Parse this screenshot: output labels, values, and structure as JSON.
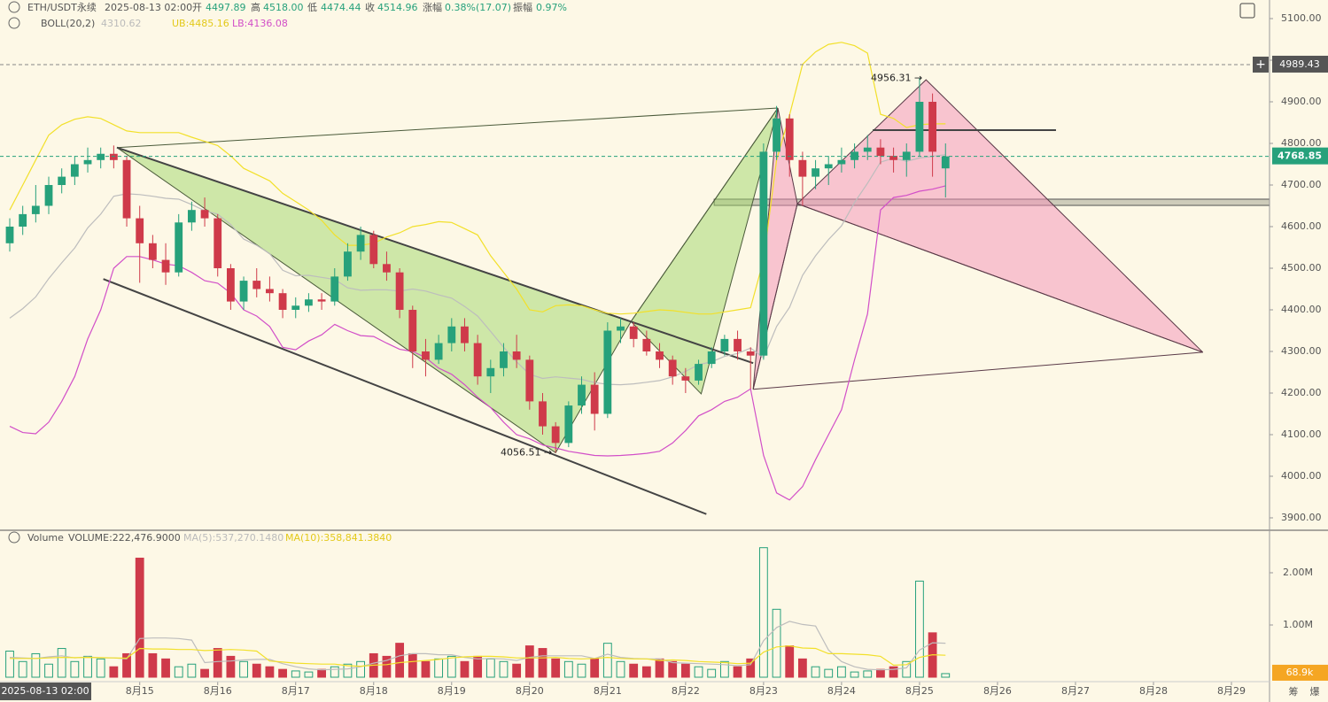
{
  "header": {
    "symbol": "ETH/USDT永续",
    "time": "2025-08-13 02:00",
    "open_label": "开",
    "open": "4497.89",
    "high_label": "高",
    "high": "4518.00",
    "low_label": "低",
    "low": "4474.44",
    "close_label": "收",
    "close": "4514.96",
    "change_label": "涨幅",
    "change": "0.38%(17.07)",
    "amplitude_label": "振幅",
    "amplitude": "0.97%",
    "boll_title": "BOLL(20,2)",
    "boll_mid": "4310.62",
    "boll_ub": "UB:4485.16",
    "boll_lb": "LB:4136.08",
    "volume_title": "Volume",
    "volume_value": "VOLUME:222,476.9000",
    "volume_ma5": "MA(5):537,270.1480",
    "volume_ma10": "MA(10):358,841.3840",
    "side_a": "筹",
    "side_b": "爆"
  },
  "chart_data": {
    "type": "candlestick",
    "up_color": "#26a17b",
    "down_color": "#cf3a4a",
    "open": [
      4560,
      4600,
      4630,
      4650,
      4700,
      4720,
      4750,
      4760,
      4775,
      4760,
      4620,
      4560,
      4520,
      4490,
      4610,
      4640,
      4620,
      4500,
      4420,
      4470,
      4450,
      4440,
      4400,
      4410,
      4425,
      4420,
      4480,
      4540,
      4580,
      4510,
      4490,
      4400,
      4300,
      4280,
      4320,
      4360,
      4320,
      4240,
      4260,
      4300,
      4280,
      4180,
      4120,
      4080,
      4170,
      4220,
      4150,
      4350,
      4360,
      4330,
      4300,
      4280,
      4240,
      4230,
      4270,
      4300,
      4330,
      4300,
      4290,
      4780,
      4860,
      4760,
      4720,
      4740,
      4750,
      4760,
      4780,
      4790,
      4770,
      4760,
      4780,
      4900,
      4740
    ],
    "high": [
      4620,
      4650,
      4700,
      4720,
      4740,
      4770,
      4790,
      4790,
      4795,
      4770,
      4650,
      4580,
      4560,
      4630,
      4660,
      4670,
      4630,
      4510,
      4480,
      4500,
      4480,
      4450,
      4430,
      4440,
      4440,
      4500,
      4560,
      4600,
      4590,
      4540,
      4500,
      4410,
      4330,
      4340,
      4380,
      4380,
      4340,
      4280,
      4320,
      4340,
      4290,
      4200,
      4130,
      4180,
      4240,
      4250,
      4370,
      4380,
      4370,
      4350,
      4320,
      4290,
      4260,
      4280,
      4310,
      4340,
      4350,
      4310,
      4800,
      4890,
      4870,
      4780,
      4760,
      4770,
      4790,
      4800,
      4820,
      4810,
      4790,
      4800,
      4956.31,
      4920,
      4800
    ],
    "low": [
      4540,
      4580,
      4610,
      4630,
      4680,
      4700,
      4730,
      4740,
      4740,
      4600,
      4465,
      4500,
      4460,
      4480,
      4590,
      4600,
      4480,
      4400,
      4400,
      4430,
      4420,
      4380,
      4380,
      4395,
      4400,
      4410,
      4470,
      4520,
      4500,
      4470,
      4380,
      4260,
      4240,
      4270,
      4300,
      4300,
      4220,
      4200,
      4240,
      4260,
      4160,
      4100,
      4056.51,
      4070,
      4150,
      4110,
      4140,
      4320,
      4310,
      4290,
      4260,
      4220,
      4200,
      4220,
      4260,
      4290,
      4280,
      4210,
      4280,
      4760,
      4720,
      4650,
      4690,
      4700,
      4730,
      4740,
      4760,
      4750,
      4730,
      4720,
      4770,
      4720,
      4670
    ],
    "close": [
      4600,
      4630,
      4650,
      4700,
      4720,
      4750,
      4760,
      4775,
      4760,
      4620,
      4560,
      4520,
      4490,
      4610,
      4640,
      4620,
      4500,
      4420,
      4470,
      4450,
      4440,
      4400,
      4410,
      4425,
      4420,
      4480,
      4540,
      4580,
      4510,
      4490,
      4400,
      4300,
      4280,
      4320,
      4360,
      4320,
      4240,
      4260,
      4300,
      4280,
      4180,
      4120,
      4080,
      4170,
      4220,
      4150,
      4350,
      4360,
      4330,
      4300,
      4280,
      4240,
      4230,
      4270,
      4300,
      4330,
      4300,
      4290,
      4780,
      4860,
      4760,
      4720,
      4740,
      4750,
      4760,
      4780,
      4790,
      4770,
      4760,
      4780,
      4900,
      4780,
      4768.85
    ],
    "ylim": [
      3872.3,
      5144.7
    ],
    "yticks": [
      {
        "value": 3900,
        "label": "3900.00"
      },
      {
        "value": 4000,
        "label": "4000.00"
      },
      {
        "value": 4100,
        "label": "4100.00"
      },
      {
        "value": 4200,
        "label": "4200.00"
      },
      {
        "value": 4300,
        "label": "4300.00"
      },
      {
        "value": 4400,
        "label": "4400.00"
      },
      {
        "value": 4500,
        "label": "4500.00"
      },
      {
        "value": 4600,
        "label": "4600.00"
      },
      {
        "value": 4700,
        "label": "4700.00"
      },
      {
        "value": 4800,
        "label": "4800.00"
      },
      {
        "value": 4900,
        "label": "4900.00"
      },
      {
        "value": 5000,
        "label": "5000.00"
      },
      {
        "value": 5100,
        "label": "5100.00"
      }
    ],
    "xlim": [
      -0.75,
      96.93
    ],
    "xticks": [
      {
        "value": 10,
        "label": "8月15"
      },
      {
        "value": 16,
        "label": "8月16"
      },
      {
        "value": 22,
        "label": "8月17"
      },
      {
        "value": 28,
        "label": "8月18"
      },
      {
        "value": 34,
        "label": "8月19"
      },
      {
        "value": 40,
        "label": "8月20"
      },
      {
        "value": 46,
        "label": "8月21"
      },
      {
        "value": 52,
        "label": "8月22"
      },
      {
        "value": 58,
        "label": "8月23"
      },
      {
        "value": 64,
        "label": "8月24"
      },
      {
        "value": 70,
        "label": "8月25"
      },
      {
        "value": 76,
        "label": "8月26"
      },
      {
        "value": 82,
        "label": "8月27"
      },
      {
        "value": 88,
        "label": "8月28"
      },
      {
        "value": 94,
        "label": "8月29"
      }
    ],
    "boll": {
      "upper_color": "#f2e02a",
      "mid_color": "#bdbdbd",
      "lower_color": "#d24fc8",
      "upper": [
        4640,
        4700,
        4760,
        4820,
        4845,
        4858,
        4864,
        4860,
        4845,
        4830,
        4826,
        4826,
        4826,
        4826,
        4815,
        4805,
        4795,
        4770,
        4740,
        4725,
        4710,
        4680,
        4660,
        4640,
        4615,
        4580,
        4555,
        4555,
        4560,
        4575,
        4585,
        4600,
        4605,
        4612,
        4610,
        4595,
        4580,
        4530,
        4490,
        4450,
        4400,
        4395,
        4410,
        4412,
        4410,
        4400,
        4392,
        4390,
        4392,
        4396,
        4400,
        4398,
        4394,
        4390,
        4390,
        4395,
        4400,
        4405,
        4520,
        4760,
        4868,
        4990,
        5020,
        5038,
        5043,
        5035,
        5017,
        4870,
        4860,
        4838,
        4845,
        4847,
        4847
      ],
      "mid": [
        4380,
        4403,
        4431,
        4475,
        4513,
        4549,
        4597,
        4630,
        4673,
        4679,
        4677,
        4673,
        4668,
        4666,
        4653,
        4638,
        4630,
        4605,
        4570,
        4555,
        4535,
        4495,
        4482,
        4483,
        4478,
        4473,
        4453,
        4447,
        4448,
        4448,
        4445,
        4450,
        4445,
        4436,
        4428,
        4408,
        4385,
        4348,
        4310,
        4275,
        4245,
        4235,
        4239,
        4236,
        4233,
        4225,
        4221,
        4220,
        4222,
        4226,
        4230,
        4239,
        4252,
        4268,
        4275,
        4288,
        4295,
        4308,
        4285,
        4360,
        4406,
        4483,
        4530,
        4569,
        4602,
        4658,
        4704,
        4755,
        4765,
        4757,
        4765,
        4769,
        4773
      ],
      "lower": [
        4120,
        4105,
        4102,
        4130,
        4180,
        4240,
        4330,
        4400,
        4500,
        4528,
        4528,
        4520,
        4510,
        4506,
        4490,
        4470,
        4464,
        4440,
        4400,
        4385,
        4360,
        4310,
        4304,
        4325,
        4340,
        4365,
        4350,
        4338,
        4336,
        4320,
        4305,
        4300,
        4285,
        4260,
        4245,
        4220,
        4190,
        4165,
        4130,
        4100,
        4090,
        4075,
        4068,
        4060,
        4055,
        4050,
        4049,
        4050,
        4052,
        4055,
        4060,
        4080,
        4110,
        4145,
        4160,
        4180,
        4190,
        4210,
        4050,
        3960,
        3943,
        3975,
        4040,
        4100,
        4160,
        4280,
        4390,
        4640,
        4670,
        4675,
        4685,
        4690,
        4698
      ]
    },
    "volume": {
      "ylim": [
        0,
        2796610
      ],
      "yticks": [
        {
          "value": 1000000,
          "label": "1.00M"
        },
        {
          "value": 2000000,
          "label": "2.00M"
        }
      ],
      "values": [
        500000,
        300000,
        450000,
        250000,
        550000,
        300000,
        400000,
        350000,
        200000,
        450000,
        2280000,
        450000,
        350000,
        200000,
        250000,
        150000,
        550000,
        400000,
        300000,
        250000,
        200000,
        150000,
        120000,
        100000,
        150000,
        200000,
        250000,
        300000,
        450000,
        400000,
        650000,
        450000,
        300000,
        350000,
        400000,
        300000,
        400000,
        350000,
        300000,
        250000,
        600000,
        550000,
        350000,
        300000,
        250000,
        350000,
        650000,
        300000,
        250000,
        200000,
        350000,
        300000,
        250000,
        200000,
        150000,
        300000,
        200000,
        350000,
        2480000,
        1300000,
        600000,
        350000,
        200000,
        150000,
        200000,
        100000,
        120000,
        150000,
        200000,
        300000,
        1840000,
        850000,
        68900
      ],
      "ma5_color": "#bdbdbd",
      "ma10_color": "#f2e02a",
      "ma5": [
        380000,
        370000,
        360000,
        390000,
        410000,
        370000,
        390000,
        370000,
        370000,
        350000,
        740000,
        750000,
        750000,
        740000,
        710000,
        280000,
        300000,
        310000,
        330000,
        340000,
        340000,
        260000,
        200000,
        160000,
        140000,
        150000,
        160000,
        200000,
        270000,
        320000,
        410000,
        450000,
        450000,
        430000,
        430000,
        380000,
        350000,
        360000,
        350000,
        320000,
        380000,
        410000,
        410000,
        410000,
        410000,
        360000,
        440000,
        380000,
        360000,
        350000,
        350000,
        280000,
        270000,
        260000,
        250000,
        240000,
        220000,
        240000,
        700000,
        950000,
        1070000,
        1010000,
        980000,
        520000,
        300000,
        200000,
        150000,
        140000,
        150000,
        180000,
        520000,
        660000,
        650000
      ],
      "ma10": [
        360000,
        360000,
        360000,
        370000,
        380000,
        375000,
        380000,
        375000,
        370000,
        365000,
        550000,
        540000,
        540000,
        530000,
        530000,
        510000,
        520000,
        530000,
        520000,
        500000,
        310000,
        290000,
        270000,
        260000,
        250000,
        250000,
        220000,
        210000,
        230000,
        240000,
        280000,
        300000,
        320000,
        340000,
        370000,
        390000,
        400000,
        400000,
        390000,
        370000,
        370000,
        370000,
        380000,
        360000,
        350000,
        360000,
        380000,
        360000,
        350000,
        350000,
        320000,
        330000,
        320000,
        300000,
        290000,
        280000,
        260000,
        270000,
        480000,
        580000,
        600000,
        560000,
        550000,
        450000,
        450000,
        440000,
        430000,
        400000,
        230000,
        240000,
        380000,
        430000,
        420000
      ]
    },
    "last_price": 4768.85,
    "crosshair_price": 4989.43,
    "volume_tag": {
      "value": 68900,
      "label": "68.9k"
    },
    "patterns": [
      {
        "color": "#9fd66a",
        "edge": "#4a5a3a",
        "points": [
          {
            "x": 8.25,
            "y": 4790
          },
          {
            "x": 42,
            "y": 4056.51
          },
          {
            "x": 47.8,
            "y": 4372
          },
          {
            "x": 53.2,
            "y": 4198
          },
          {
            "x": 59.1,
            "y": 4885
          }
        ]
      },
      {
        "color": "#f38fb8",
        "edge": "#5a3a48",
        "points": [
          {
            "x": 57.2,
            "y": 4209
          },
          {
            "x": 59.1,
            "y": 4885
          },
          {
            "x": 60.6,
            "y": 4655
          },
          {
            "x": 70.5,
            "y": 4953
          },
          {
            "x": 91.8,
            "y": 4298
          }
        ]
      }
    ],
    "trendlines": [
      {
        "color": "#444",
        "points": [
          {
            "x": 8.25,
            "y": 4790
          },
          {
            "x": 57.2,
            "y": 4272
          }
        ]
      },
      {
        "color": "#444",
        "points": [
          {
            "x": 7.2,
            "y": 4474
          },
          {
            "x": 53.6,
            "y": 3909
          }
        ]
      },
      {
        "color": "#444",
        "points": [
          {
            "x": 66.4,
            "y": 4832
          },
          {
            "x": 80.5,
            "y": 4832
          }
        ]
      }
    ],
    "zone": {
      "x": 54.2,
      "y": [
        4651,
        4666
      ],
      "color": "#b9b9a6"
    },
    "annotations": [
      {
        "text": "4956.31 →",
        "x": 70.5,
        "y": 4956.31
      },
      {
        "text": "4056.51 →",
        "x": 42,
        "y": 4056.51
      }
    ]
  }
}
